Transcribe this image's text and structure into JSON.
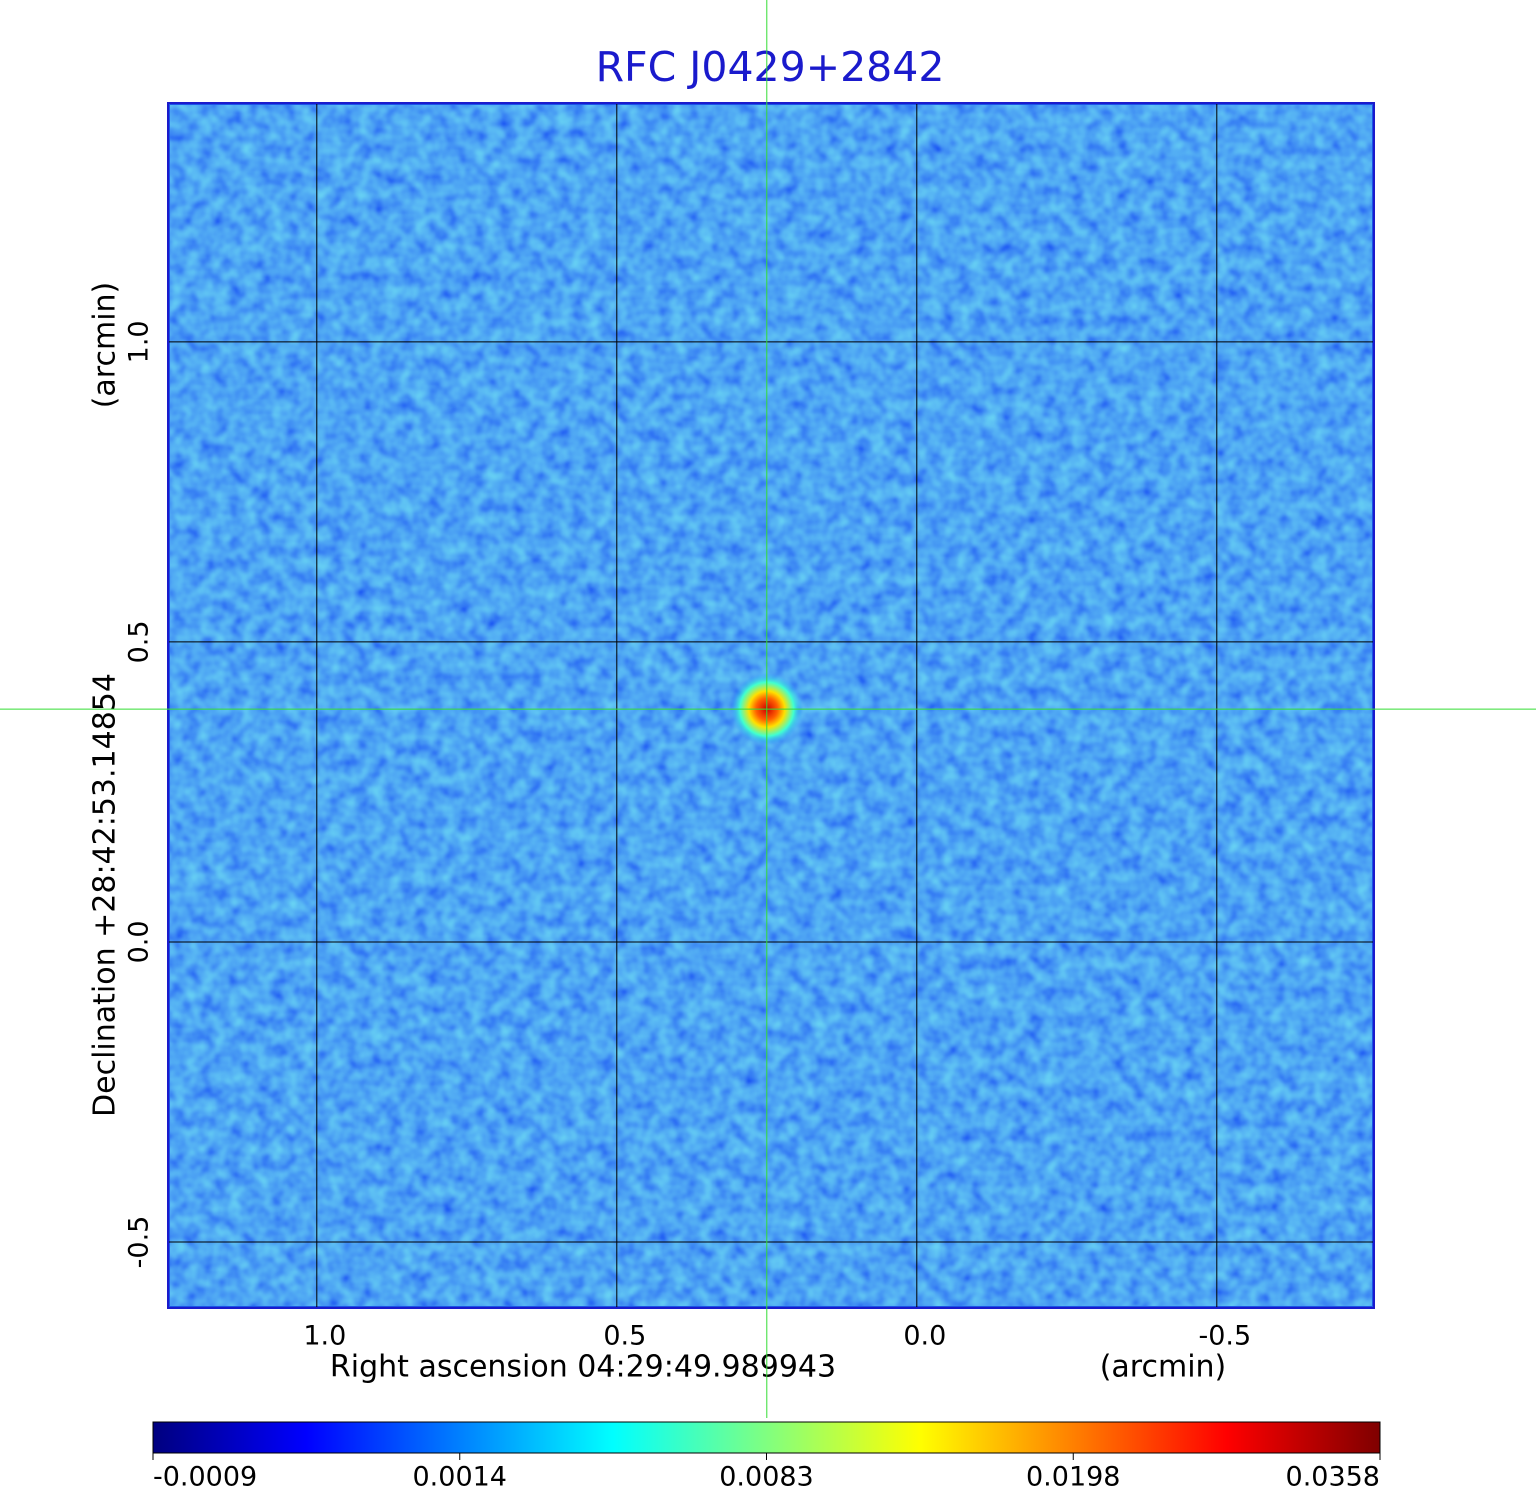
{
  "chart_data": {
    "type": "image",
    "title": "RFC J0429+2842",
    "x_label": "Right ascension  04:29:49.989943",
    "x_unit": "(arcmin)",
    "y_label": "Declination  +28:42:53.14854",
    "y_unit": "(arcmin)",
    "xlim": [
      1.248,
      -0.762
    ],
    "ylim": [
      -0.61,
      1.398
    ],
    "xticks": [
      {
        "value": 1,
        "label": "1.0"
      },
      0.5,
      {
        "value": 0,
        "label": "0.0"
      },
      -0.5
    ],
    "yticks": [
      {
        "value": 1,
        "label": "1.0"
      },
      0.5,
      {
        "value": 0,
        "label": "0.0"
      },
      -0.5
    ],
    "grid": true,
    "crosshair": {
      "x": 0.25,
      "y": 0.388,
      "color": "#33dd33"
    },
    "colormap": [
      "#00007f",
      "#0000ff",
      "#0080ff",
      "#00ffff",
      "#80ff80",
      "#ffff00",
      "#ff8000",
      "#ff0000",
      "#7f0000"
    ],
    "colorbar_ticks": [
      -0.0009,
      0.0014,
      0.0083,
      0.0198,
      0.0358
    ]
  }
}
